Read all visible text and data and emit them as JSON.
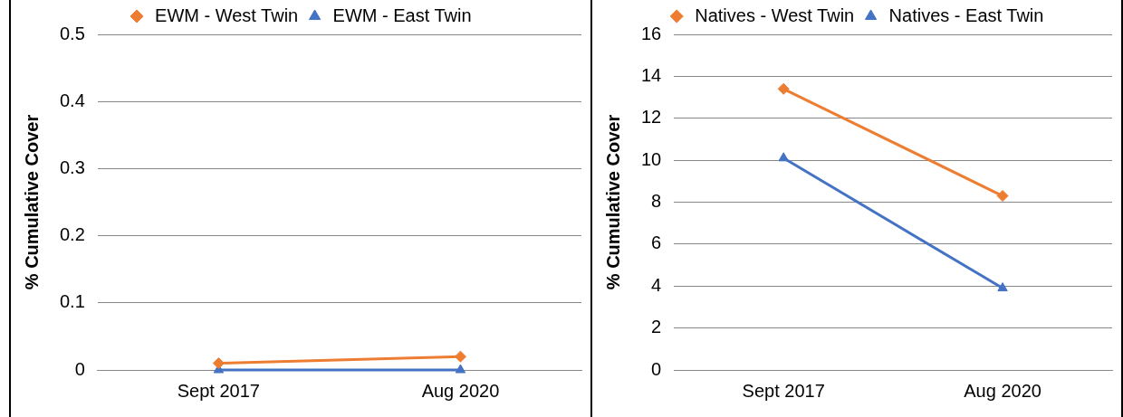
{
  "chart_data": [
    {
      "type": "line",
      "categories": [
        "Sept 2017",
        "Aug 2020"
      ],
      "ylabel": "% Cumulative Cover",
      "ylim": [
        0,
        0.5
      ],
      "yticks": [
        0,
        0.1,
        0.2,
        0.3,
        0.4,
        0.5
      ],
      "grid": "y",
      "legend": "top",
      "series": [
        {
          "name": "EWM - West Twin",
          "color": "#ed7d31",
          "marker": "diamond",
          "values": [
            0.01,
            0.02
          ]
        },
        {
          "name": "EWM - East Twin",
          "color": "#4472c4",
          "marker": "triangle",
          "values": [
            0,
            0
          ]
        }
      ]
    },
    {
      "type": "line",
      "categories": [
        "Sept 2017",
        "Aug 2020"
      ],
      "ylabel": "% Cumulative Cover",
      "ylim": [
        0,
        16
      ],
      "yticks": [
        0,
        2,
        4,
        6,
        8,
        10,
        12,
        14,
        16
      ],
      "grid": "y",
      "legend": "top",
      "series": [
        {
          "name": "Natives - West Twin",
          "color": "#ed7d31",
          "marker": "diamond",
          "values": [
            13.4,
            8.3
          ]
        },
        {
          "name": "Natives - East Twin",
          "color": "#4472c4",
          "marker": "triangle",
          "values": [
            10.1,
            3.9
          ]
        }
      ]
    }
  ]
}
